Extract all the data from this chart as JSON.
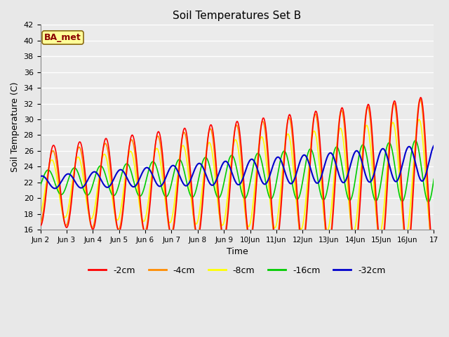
{
  "title": "Soil Temperatures Set B",
  "xlabel": "Time",
  "ylabel": "Soil Temperature (C)",
  "ylim": [
    16,
    42
  ],
  "yticks": [
    16,
    18,
    20,
    22,
    24,
    26,
    28,
    30,
    32,
    34,
    36,
    38,
    40,
    42
  ],
  "annotation_text": "BA_met",
  "annotation_color": "#8B0000",
  "annotation_bg": "#FFFF99",
  "annotation_edge": "#8B6914",
  "line_colors": {
    "-2cm": "#FF0000",
    "-4cm": "#FF8C00",
    "-8cm": "#FFFF00",
    "-16cm": "#00CC00",
    "-32cm": "#0000CC"
  },
  "line_widths": {
    "-2cm": 1.2,
    "-4cm": 1.2,
    "-8cm": 1.2,
    "-16cm": 1.2,
    "-32cm": 1.5
  },
  "bg_color": "#E8E8E8",
  "plot_bg": "#EBEBEB",
  "grid_color": "#FFFFFF",
  "n_days": 15,
  "points_per_day": 48
}
